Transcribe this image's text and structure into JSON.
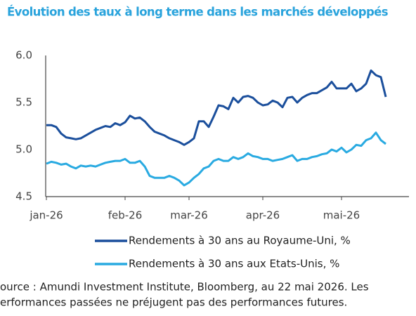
{
  "chart_data": {
    "type": "line",
    "title": "Évolution des taux à long terme dans les marchés développés",
    "categories": [
      "jan-26",
      null,
      null,
      null,
      null,
      null,
      null,
      null,
      null,
      null,
      null,
      null,
      null,
      null,
      null,
      null,
      "feb-26",
      null,
      null,
      null,
      null,
      null,
      null,
      null,
      null,
      null,
      null,
      null,
      null,
      "mar-26",
      null,
      null,
      null,
      null,
      null,
      null,
      null,
      null,
      null,
      null,
      null,
      null,
      null,
      null,
      "apr-26",
      null,
      null,
      null,
      null,
      null,
      null,
      null,
      null,
      null,
      null,
      null,
      null,
      null,
      null,
      null,
      "mai-26",
      null,
      null,
      null,
      null,
      null,
      null,
      null,
      null,
      null
    ],
    "series": [
      {
        "name": "Rendements à 30 ans au Royaume-Uni, %",
        "color": "#1b4f9c",
        "values": [
          5.26,
          5.26,
          5.24,
          5.17,
          5.13,
          5.12,
          5.11,
          5.12,
          5.15,
          5.18,
          5.21,
          5.23,
          5.25,
          5.24,
          5.28,
          5.26,
          5.29,
          5.36,
          5.33,
          5.34,
          5.3,
          5.24,
          5.19,
          5.17,
          5.15,
          5.12,
          5.1,
          5.08,
          5.05,
          5.08,
          5.12,
          5.3,
          5.3,
          5.24,
          5.35,
          5.47,
          5.46,
          5.43,
          5.55,
          5.5,
          5.56,
          5.57,
          5.55,
          5.5,
          5.47,
          5.48,
          5.52,
          5.5,
          5.45,
          5.55,
          5.56,
          5.5,
          5.55,
          5.58,
          5.6,
          5.6,
          5.63,
          5.66,
          5.72,
          5.65,
          5.65,
          5.65,
          5.7,
          5.62,
          5.65,
          5.7,
          5.84,
          5.79,
          5.77,
          5.56
        ]
      },
      {
        "name": "Rendements à 30 ans aux Etats-Unis, %",
        "color": "#29aae1",
        "values": [
          4.85,
          4.87,
          4.86,
          4.84,
          4.85,
          4.82,
          4.8,
          4.83,
          4.82,
          4.83,
          4.82,
          4.84,
          4.86,
          4.87,
          4.88,
          4.88,
          4.9,
          4.86,
          4.86,
          4.88,
          4.82,
          4.72,
          4.7,
          4.7,
          4.7,
          4.72,
          4.7,
          4.67,
          4.62,
          4.65,
          4.7,
          4.74,
          4.8,
          4.82,
          4.88,
          4.9,
          4.88,
          4.88,
          4.92,
          4.9,
          4.92,
          4.96,
          4.93,
          4.92,
          4.9,
          4.9,
          4.88,
          4.89,
          4.9,
          4.92,
          4.94,
          4.88,
          4.9,
          4.9,
          4.92,
          4.93,
          4.95,
          4.96,
          5.0,
          4.98,
          5.02,
          4.97,
          5.0,
          5.05,
          5.04,
          5.1,
          5.12,
          5.18,
          5.1,
          5.06
        ]
      }
    ],
    "ylim": [
      4.5,
      6.0
    ],
    "yticks": [
      {
        "value": 4.5,
        "label": "4.5"
      },
      {
        "value": 5.0,
        "label": "5.0"
      },
      {
        "value": 5.5,
        "label": "5.5"
      },
      {
        "value": 6.0,
        "label": "6.0"
      }
    ],
    "grid": false,
    "source": [
      "ource : Amundi Investment Institute, Bloomberg, au 22 mai 2026. Les",
      "erformances passées ne préjugent pas des performances futures."
    ]
  }
}
